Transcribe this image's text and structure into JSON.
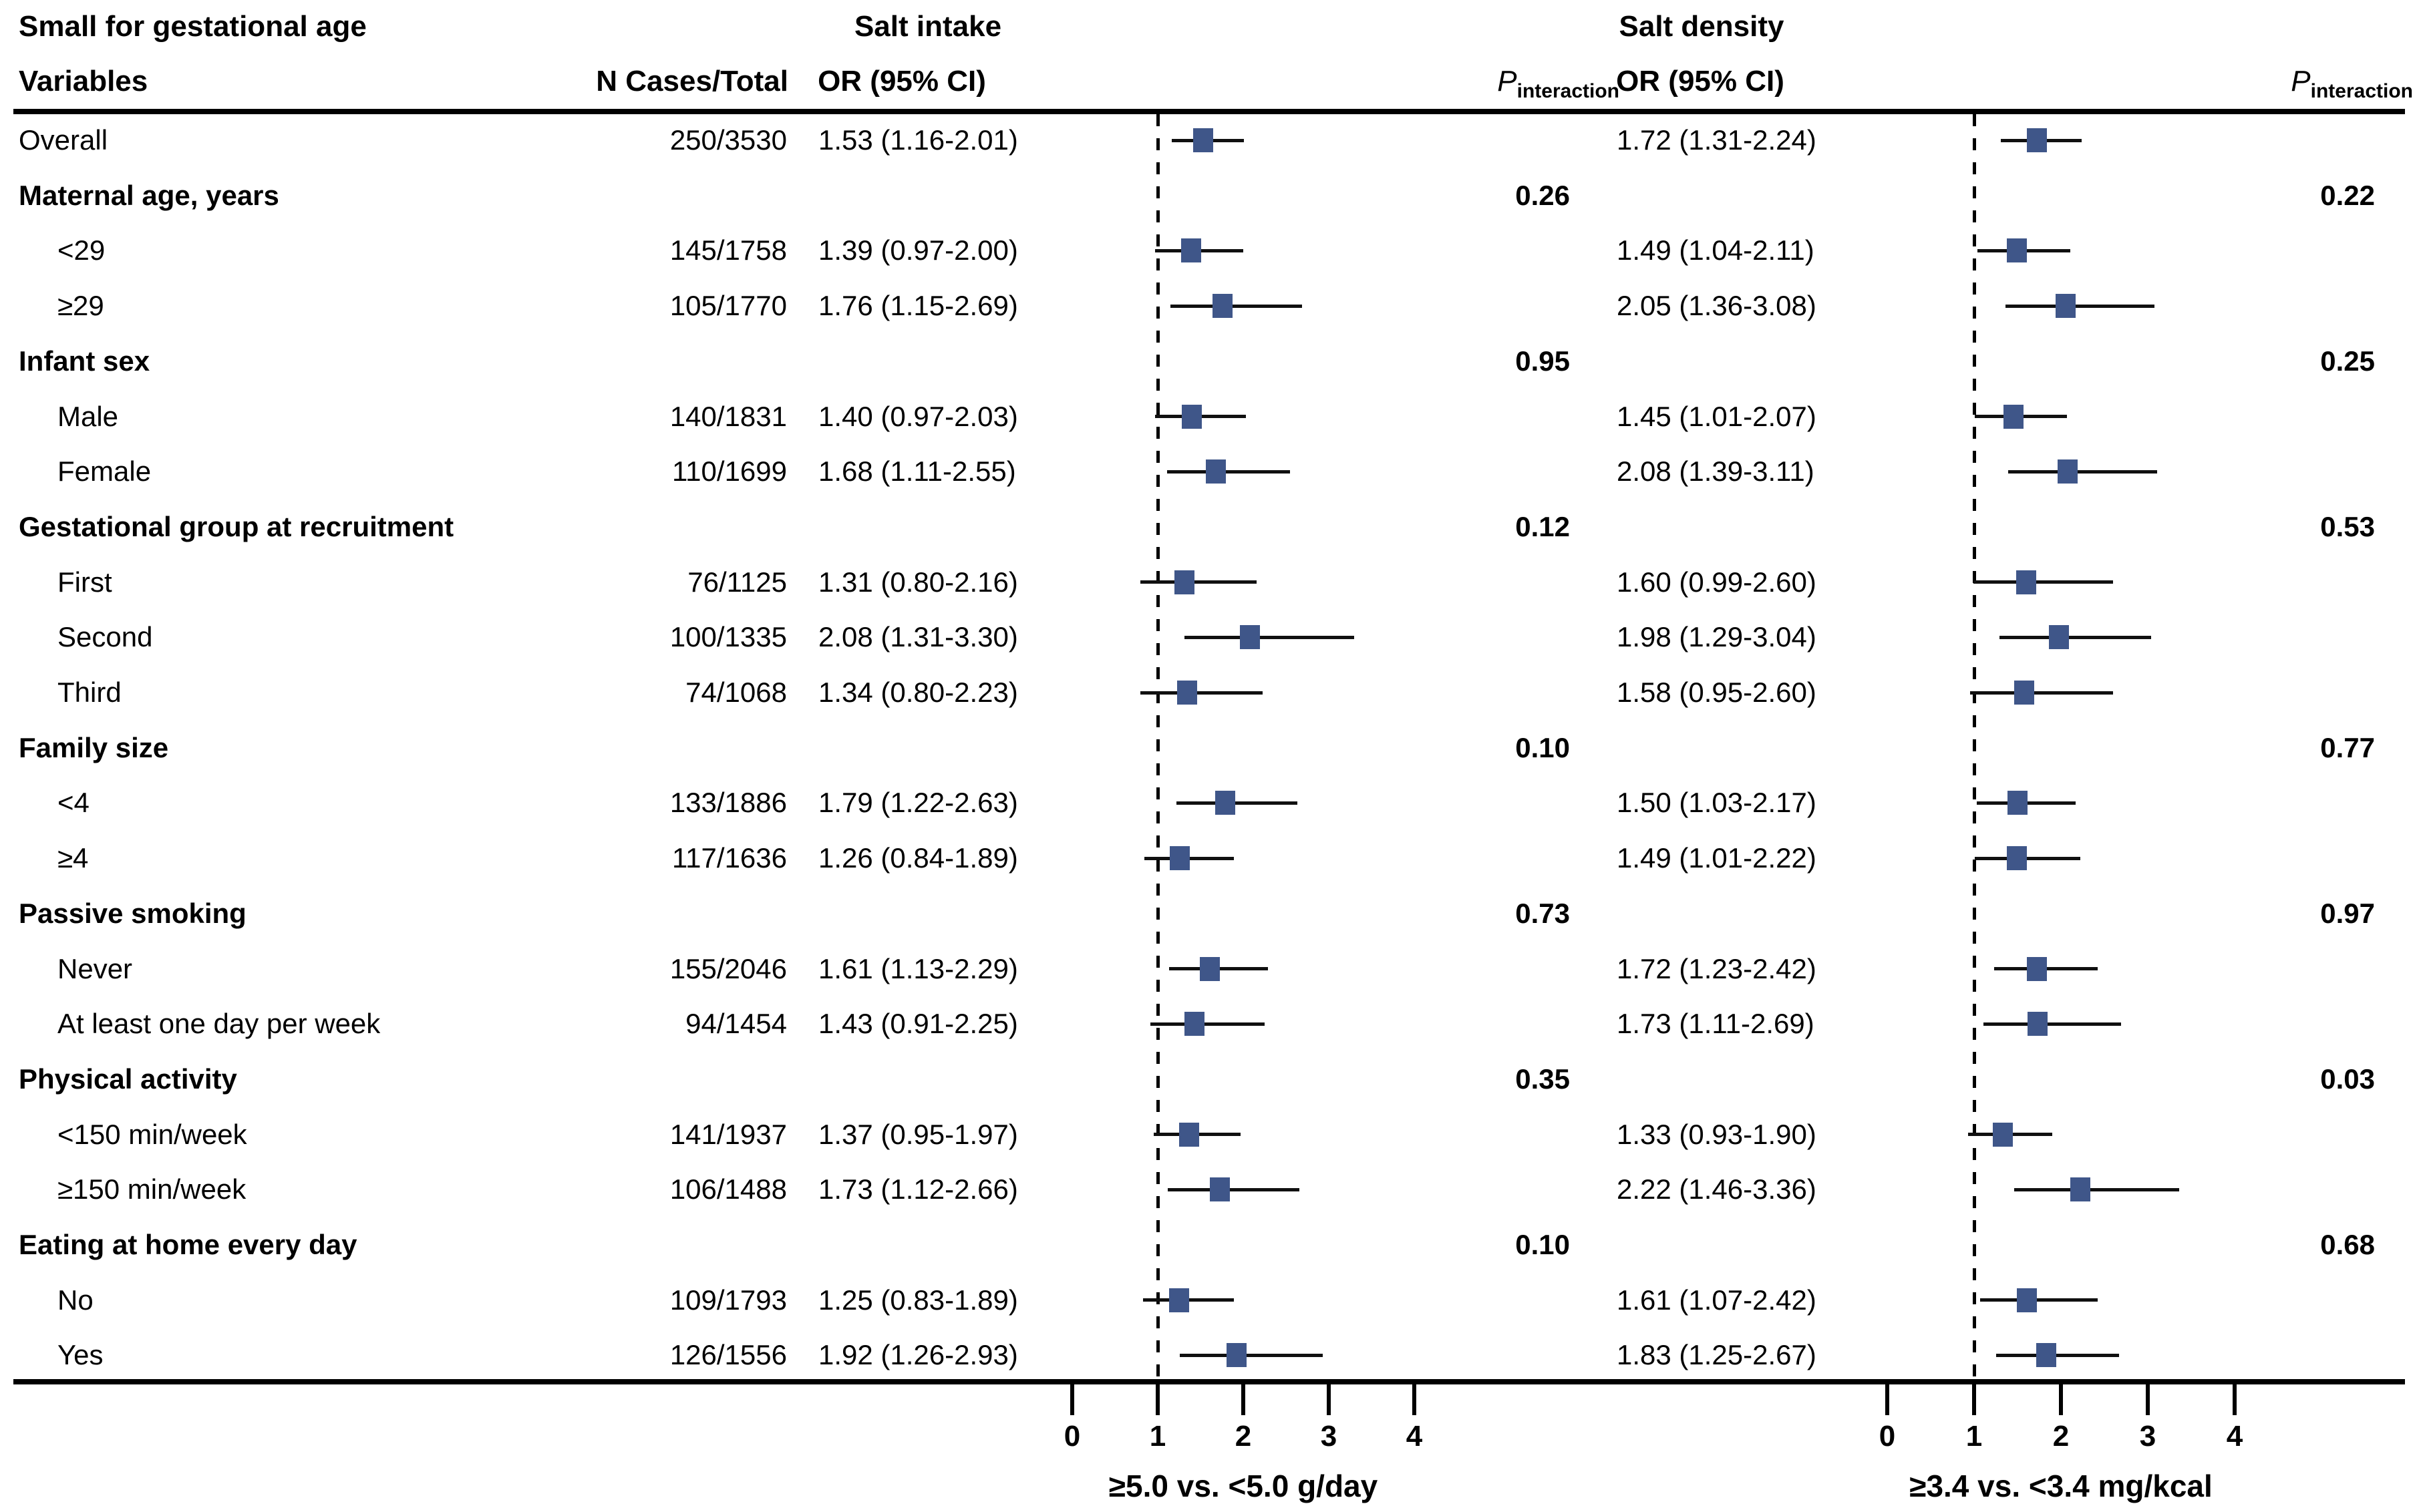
{
  "header": {
    "variables": "Variables",
    "n_cases": "N Cases/Total",
    "or_ci": "OR (95% CI)",
    "p_label": "P",
    "p_sub": "interaction"
  },
  "chart_data": {
    "type": "forest",
    "title": "Small for gestational age",
    "panels": {
      "intake": {
        "title": "Salt intake",
        "xlabel": "≥5.0 vs. <5.0 g/day"
      },
      "density": {
        "title": "Salt density",
        "xlabel": "≥3.4 vs. <3.4 mg/kcal"
      }
    },
    "or_axis": {
      "ticks": [
        0,
        1,
        2,
        3,
        4
      ],
      "reference_line": 1,
      "xlim": [
        0,
        4.9
      ],
      "grid": false
    },
    "marker_color": "#3F5689",
    "rows": [
      {
        "type": "item",
        "label": "Overall",
        "indent": false,
        "n": "250/3530",
        "intake": {
          "text": "1.53 (1.16-2.01)",
          "or": 1.53,
          "lo": 1.16,
          "hi": 2.01
        },
        "density": {
          "text": "1.72 (1.31-2.24)",
          "or": 1.72,
          "lo": 1.31,
          "hi": 2.24
        }
      },
      {
        "type": "group",
        "label": "Maternal age, years",
        "p_intake": "0.26",
        "p_density": "0.22"
      },
      {
        "type": "item",
        "label": "<29",
        "indent": true,
        "n": "145/1758",
        "intake": {
          "text": "1.39 (0.97-2.00)",
          "or": 1.39,
          "lo": 0.97,
          "hi": 2.0
        },
        "density": {
          "text": "1.49 (1.04-2.11)",
          "or": 1.49,
          "lo": 1.04,
          "hi": 2.11
        }
      },
      {
        "type": "item",
        "label": "≥29",
        "indent": true,
        "n": "105/1770",
        "intake": {
          "text": "1.76 (1.15-2.69)",
          "or": 1.76,
          "lo": 1.15,
          "hi": 2.69
        },
        "density": {
          "text": "2.05 (1.36-3.08)",
          "or": 2.05,
          "lo": 1.36,
          "hi": 3.08
        }
      },
      {
        "type": "group",
        "label": "Infant sex",
        "p_intake": "0.95",
        "p_density": "0.25"
      },
      {
        "type": "item",
        "label": "Male",
        "indent": true,
        "n": "140/1831",
        "intake": {
          "text": "1.40 (0.97-2.03)",
          "or": 1.4,
          "lo": 0.97,
          "hi": 2.03
        },
        "density": {
          "text": "1.45 (1.01-2.07)",
          "or": 1.45,
          "lo": 1.01,
          "hi": 2.07
        }
      },
      {
        "type": "item",
        "label": "Female",
        "indent": true,
        "n": "110/1699",
        "intake": {
          "text": "1.68 (1.11-2.55)",
          "or": 1.68,
          "lo": 1.11,
          "hi": 2.55
        },
        "density": {
          "text": "2.08 (1.39-3.11)",
          "or": 2.08,
          "lo": 1.39,
          "hi": 3.11
        }
      },
      {
        "type": "group",
        "label": "Gestational group at recruitment",
        "p_intake": "0.12",
        "p_density": "0.53"
      },
      {
        "type": "item",
        "label": "First",
        "indent": true,
        "n": "76/1125",
        "intake": {
          "text": "1.31 (0.80-2.16)",
          "or": 1.31,
          "lo": 0.8,
          "hi": 2.16
        },
        "density": {
          "text": "1.60 (0.99-2.60)",
          "or": 1.6,
          "lo": 0.99,
          "hi": 2.6
        }
      },
      {
        "type": "item",
        "label": "Second",
        "indent": true,
        "n": "100/1335",
        "intake": {
          "text": "2.08 (1.31-3.30)",
          "or": 2.08,
          "lo": 1.31,
          "hi": 3.3
        },
        "density": {
          "text": "1.98 (1.29-3.04)",
          "or": 1.98,
          "lo": 1.29,
          "hi": 3.04
        }
      },
      {
        "type": "item",
        "label": "Third",
        "indent": true,
        "n": "74/1068",
        "intake": {
          "text": "1.34 (0.80-2.23)",
          "or": 1.34,
          "lo": 0.8,
          "hi": 2.23
        },
        "density": {
          "text": "1.58 (0.95-2.60)",
          "or": 1.58,
          "lo": 0.95,
          "hi": 2.6
        }
      },
      {
        "type": "group",
        "label": "Family size",
        "p_intake": "0.10",
        "p_density": "0.77"
      },
      {
        "type": "item",
        "label": "<4",
        "indent": true,
        "n": "133/1886",
        "intake": {
          "text": "1.79 (1.22-2.63)",
          "or": 1.79,
          "lo": 1.22,
          "hi": 2.63
        },
        "density": {
          "text": "1.50 (1.03-2.17)",
          "or": 1.5,
          "lo": 1.03,
          "hi": 2.17
        }
      },
      {
        "type": "item",
        "label": "≥4",
        "indent": true,
        "n": "117/1636",
        "intake": {
          "text": "1.26 (0.84-1.89)",
          "or": 1.26,
          "lo": 0.84,
          "hi": 1.89
        },
        "density": {
          "text": "1.49 (1.01-2.22)",
          "or": 1.49,
          "lo": 1.01,
          "hi": 2.22
        }
      },
      {
        "type": "group",
        "label": "Passive smoking",
        "p_intake": "0.73",
        "p_density": "0.97"
      },
      {
        "type": "item",
        "label": "Never",
        "indent": true,
        "n": "155/2046",
        "intake": {
          "text": "1.61 (1.13-2.29)",
          "or": 1.61,
          "lo": 1.13,
          "hi": 2.29
        },
        "density": {
          "text": "1.72 (1.23-2.42)",
          "or": 1.72,
          "lo": 1.23,
          "hi": 2.42
        }
      },
      {
        "type": "item",
        "label": "At least one day per week",
        "indent": true,
        "n": "94/1454",
        "intake": {
          "text": "1.43 (0.91-2.25)",
          "or": 1.43,
          "lo": 0.91,
          "hi": 2.25
        },
        "density": {
          "text": "1.73 (1.11-2.69)",
          "or": 1.73,
          "lo": 1.11,
          "hi": 2.69
        }
      },
      {
        "type": "group",
        "label": "Physical activity",
        "p_intake": "0.35",
        "p_density": "0.03"
      },
      {
        "type": "item",
        "label": "<150 min/week",
        "indent": true,
        "n": "141/1937",
        "intake": {
          "text": "1.37 (0.95-1.97)",
          "or": 1.37,
          "lo": 0.95,
          "hi": 1.97
        },
        "density": {
          "text": "1.33 (0.93-1.90)",
          "or": 1.33,
          "lo": 0.93,
          "hi": 1.9
        }
      },
      {
        "type": "item",
        "label": "≥150 min/week",
        "indent": true,
        "n": "106/1488",
        "intake": {
          "text": "1.73 (1.12-2.66)",
          "or": 1.73,
          "lo": 1.12,
          "hi": 2.66
        },
        "density": {
          "text": "2.22 (1.46-3.36)",
          "or": 2.22,
          "lo": 1.46,
          "hi": 3.36
        }
      },
      {
        "type": "group",
        "label": "Eating at home every day",
        "p_intake": "0.10",
        "p_density": "0.68"
      },
      {
        "type": "item",
        "label": "No",
        "indent": true,
        "n": "109/1793",
        "intake": {
          "text": "1.25 (0.83-1.89)",
          "or": 1.25,
          "lo": 0.83,
          "hi": 1.89
        },
        "density": {
          "text": "1.61 (1.07-2.42)",
          "or": 1.61,
          "lo": 1.07,
          "hi": 2.42
        }
      },
      {
        "type": "item",
        "label": "Yes",
        "indent": true,
        "n": "126/1556",
        "intake": {
          "text": "1.92 (1.26-2.93)",
          "or": 1.92,
          "lo": 1.26,
          "hi": 2.93
        },
        "density": {
          "text": "1.83 (1.25-2.67)",
          "or": 1.83,
          "lo": 1.25,
          "hi": 2.67
        }
      }
    ]
  }
}
